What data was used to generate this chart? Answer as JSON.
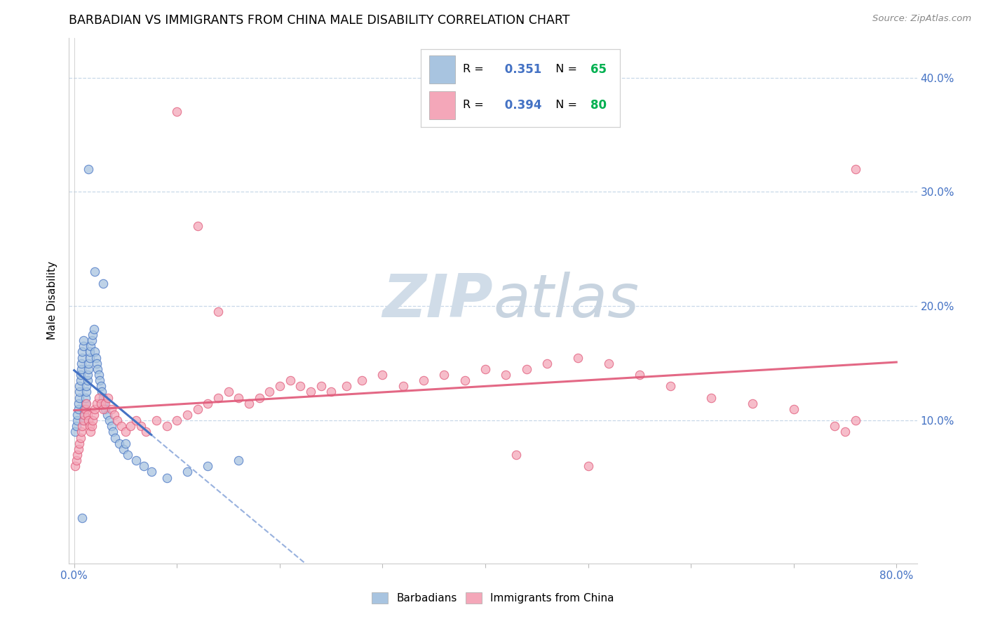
{
  "title": "BARBADIAN VS IMMIGRANTS FROM CHINA MALE DISABILITY CORRELATION CHART",
  "source": "Source: ZipAtlas.com",
  "ylabel": "Male Disability",
  "xlim": [
    -0.005,
    0.82
  ],
  "ylim": [
    -0.025,
    0.435
  ],
  "barbadian_R": 0.351,
  "barbadian_N": 65,
  "china_R": 0.394,
  "china_N": 80,
  "barbadian_scatter_color": "#a8c4e0",
  "barbadian_line_color": "#4472c4",
  "china_scatter_color": "#f4a7b9",
  "china_line_color": "#e05878",
  "watermark_color": "#d0dce8",
  "legend_R_color": "#4472c4",
  "legend_N_color": "#00b050",
  "grid_color": "#c8d8e8",
  "axis_label_color": "#4472c4",
  "yticks": [
    0.1,
    0.2,
    0.3,
    0.4
  ],
  "barbadian_x": [
    0.001,
    0.002,
    0.003,
    0.003,
    0.004,
    0.004,
    0.005,
    0.005,
    0.005,
    0.006,
    0.006,
    0.007,
    0.007,
    0.008,
    0.008,
    0.009,
    0.009,
    0.01,
    0.01,
    0.01,
    0.011,
    0.011,
    0.012,
    0.012,
    0.013,
    0.013,
    0.014,
    0.014,
    0.015,
    0.015,
    0.016,
    0.017,
    0.018,
    0.019,
    0.02,
    0.021,
    0.022,
    0.023,
    0.024,
    0.025,
    0.026,
    0.027,
    0.028,
    0.029,
    0.03,
    0.032,
    0.034,
    0.036,
    0.038,
    0.04,
    0.044,
    0.048,
    0.052,
    0.06,
    0.068,
    0.075,
    0.09,
    0.11,
    0.13,
    0.16,
    0.014,
    0.02,
    0.028,
    0.008,
    0.05
  ],
  "barbadian_y": [
    0.09,
    0.095,
    0.1,
    0.105,
    0.11,
    0.115,
    0.12,
    0.125,
    0.13,
    0.135,
    0.14,
    0.145,
    0.15,
    0.155,
    0.16,
    0.165,
    0.17,
    0.1,
    0.105,
    0.11,
    0.115,
    0.12,
    0.125,
    0.13,
    0.135,
    0.14,
    0.145,
    0.15,
    0.155,
    0.16,
    0.165,
    0.17,
    0.175,
    0.18,
    0.16,
    0.155,
    0.15,
    0.145,
    0.14,
    0.135,
    0.13,
    0.125,
    0.12,
    0.115,
    0.11,
    0.105,
    0.1,
    0.095,
    0.09,
    0.085,
    0.08,
    0.075,
    0.07,
    0.065,
    0.06,
    0.055,
    0.05,
    0.055,
    0.06,
    0.065,
    0.32,
    0.23,
    0.22,
    0.015,
    0.08
  ],
  "china_x": [
    0.001,
    0.002,
    0.003,
    0.004,
    0.005,
    0.006,
    0.007,
    0.008,
    0.009,
    0.01,
    0.011,
    0.012,
    0.013,
    0.014,
    0.015,
    0.016,
    0.017,
    0.018,
    0.019,
    0.02,
    0.022,
    0.024,
    0.026,
    0.028,
    0.03,
    0.033,
    0.036,
    0.039,
    0.042,
    0.046,
    0.05,
    0.055,
    0.06,
    0.065,
    0.07,
    0.08,
    0.09,
    0.1,
    0.11,
    0.12,
    0.13,
    0.14,
    0.15,
    0.16,
    0.17,
    0.18,
    0.19,
    0.2,
    0.21,
    0.22,
    0.23,
    0.24,
    0.25,
    0.265,
    0.28,
    0.3,
    0.32,
    0.34,
    0.36,
    0.38,
    0.4,
    0.42,
    0.44,
    0.46,
    0.49,
    0.52,
    0.55,
    0.58,
    0.62,
    0.66,
    0.7,
    0.74,
    0.76,
    0.1,
    0.12,
    0.14,
    0.43,
    0.5,
    0.75,
    0.76
  ],
  "china_y": [
    0.06,
    0.065,
    0.07,
    0.075,
    0.08,
    0.085,
    0.09,
    0.095,
    0.1,
    0.105,
    0.11,
    0.115,
    0.105,
    0.1,
    0.095,
    0.09,
    0.095,
    0.1,
    0.105,
    0.11,
    0.115,
    0.12,
    0.115,
    0.11,
    0.115,
    0.12,
    0.11,
    0.105,
    0.1,
    0.095,
    0.09,
    0.095,
    0.1,
    0.095,
    0.09,
    0.1,
    0.095,
    0.1,
    0.105,
    0.11,
    0.115,
    0.12,
    0.125,
    0.12,
    0.115,
    0.12,
    0.125,
    0.13,
    0.135,
    0.13,
    0.125,
    0.13,
    0.125,
    0.13,
    0.135,
    0.14,
    0.13,
    0.135,
    0.14,
    0.135,
    0.145,
    0.14,
    0.145,
    0.15,
    0.155,
    0.15,
    0.14,
    0.13,
    0.12,
    0.115,
    0.11,
    0.095,
    0.1,
    0.37,
    0.27,
    0.195,
    0.07,
    0.06,
    0.09,
    0.32
  ]
}
